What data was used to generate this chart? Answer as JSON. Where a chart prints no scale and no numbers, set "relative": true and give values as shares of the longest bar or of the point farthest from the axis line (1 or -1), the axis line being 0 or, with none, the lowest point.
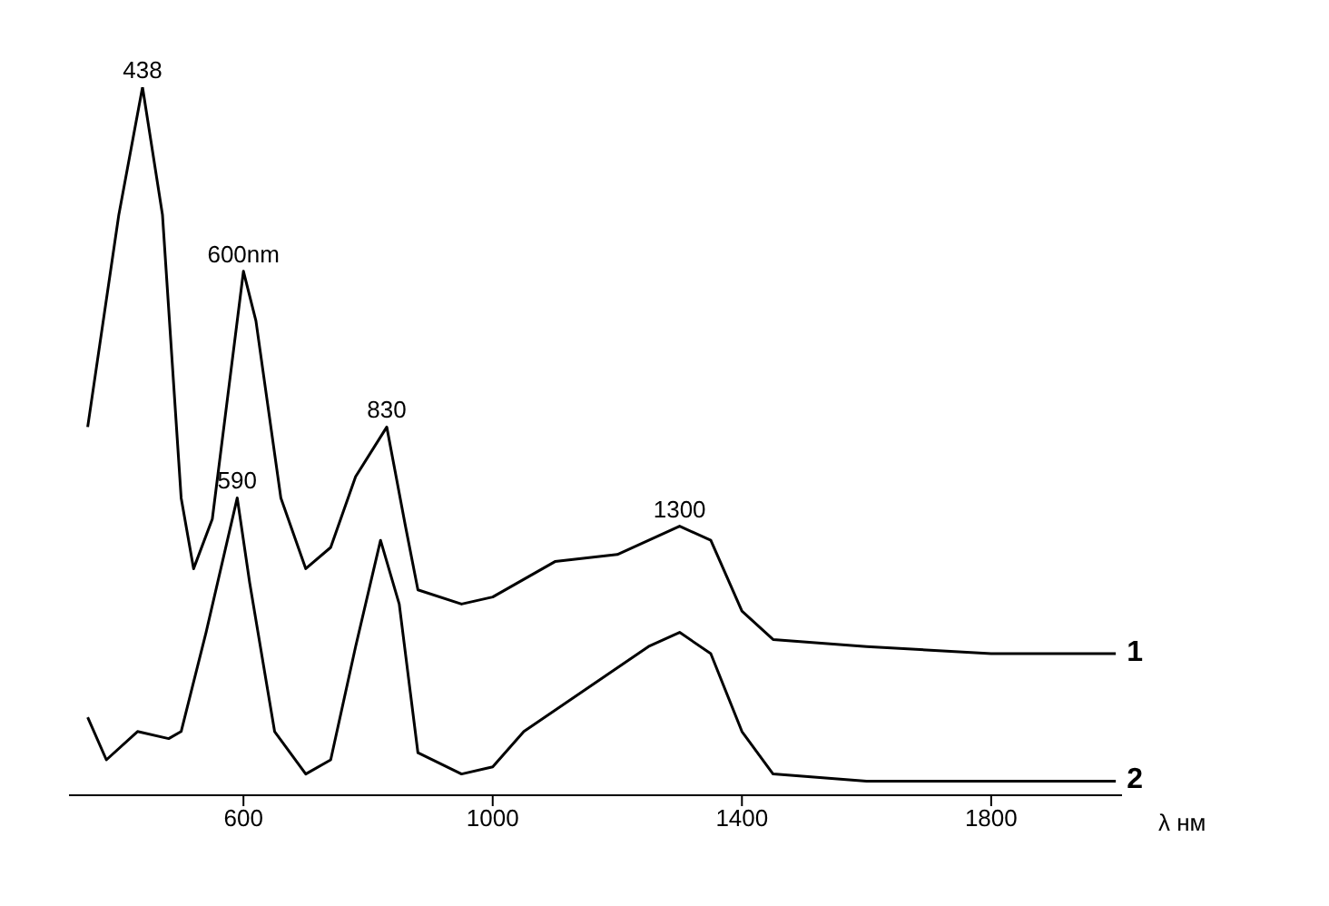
{
  "chart_data": {
    "type": "line",
    "relative": true,
    "xlabel": "λ нм",
    "xlim": [
      320,
      2010
    ],
    "xticks": [
      600,
      1000,
      1400,
      1800
    ],
    "marker": "none",
    "line_style": "solid",
    "series": [
      {
        "name": "1",
        "color": "#000000",
        "x": [
          350,
          400,
          438,
          470,
          500,
          520,
          550,
          600,
          620,
          660,
          700,
          740,
          780,
          830,
          860,
          880,
          950,
          1000,
          1100,
          1200,
          1300,
          1350,
          1400,
          1450,
          1600,
          1800,
          1900,
          2000
        ],
        "values": [
          0.52,
          0.82,
          1.0,
          0.82,
          0.42,
          0.32,
          0.39,
          0.74,
          0.67,
          0.42,
          0.32,
          0.35,
          0.45,
          0.52,
          0.38,
          0.29,
          0.27,
          0.28,
          0.33,
          0.34,
          0.38,
          0.36,
          0.26,
          0.22,
          0.21,
          0.2,
          0.2,
          0.2
        ]
      },
      {
        "name": "2",
        "color": "#000000",
        "x": [
          350,
          380,
          430,
          480,
          500,
          540,
          590,
          610,
          650,
          700,
          740,
          780,
          820,
          850,
          880,
          950,
          1000,
          1050,
          1150,
          1250,
          1300,
          1350,
          1400,
          1450,
          1600,
          1800,
          2000
        ],
        "values": [
          0.11,
          0.05,
          0.09,
          0.08,
          0.09,
          0.23,
          0.42,
          0.3,
          0.09,
          0.03,
          0.05,
          0.21,
          0.36,
          0.27,
          0.06,
          0.03,
          0.04,
          0.09,
          0.15,
          0.21,
          0.23,
          0.2,
          0.09,
          0.03,
          0.02,
          0.02,
          0.02
        ]
      }
    ],
    "annotations": [
      {
        "text": "438",
        "x": 438,
        "y": 1.0
      },
      {
        "text": "600nm",
        "x": 600,
        "y": 0.74
      },
      {
        "text": "590",
        "x": 590,
        "y": 0.42
      },
      {
        "text": "830",
        "x": 830,
        "y": 0.52
      },
      {
        "text": "1300",
        "x": 1300,
        "y": 0.38
      }
    ]
  }
}
